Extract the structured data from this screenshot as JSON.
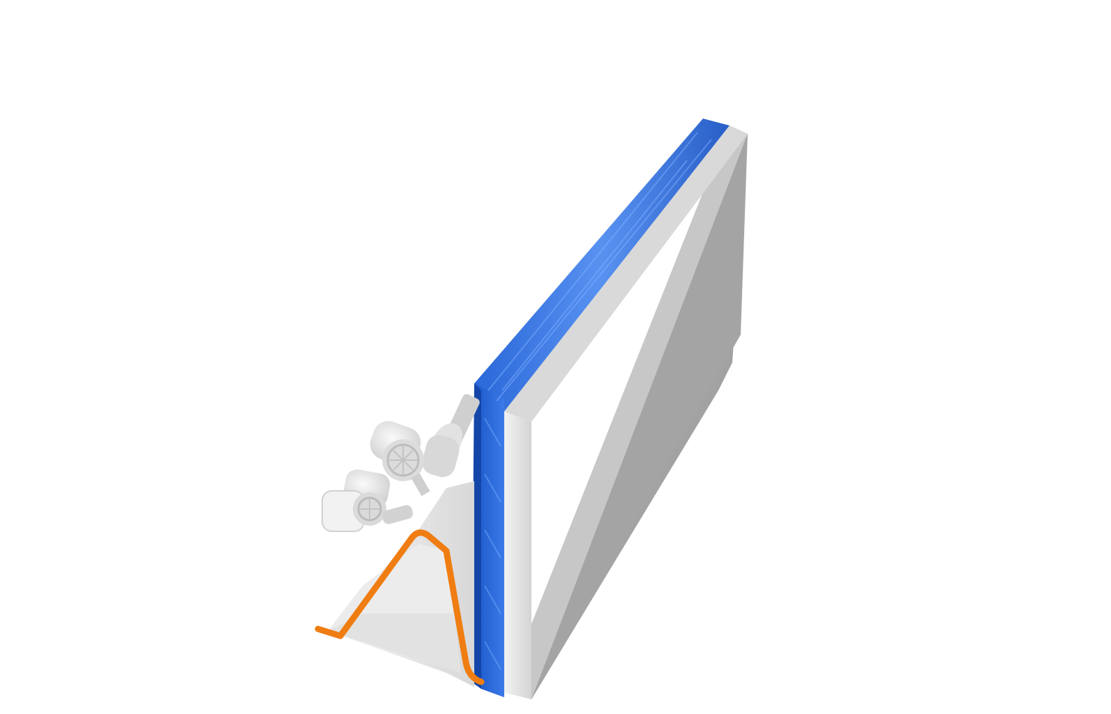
{
  "scene": {
    "background_color": "#ffffff",
    "components": [
      {
        "id": "gray-panel",
        "color": "#a6a6a6"
      },
      {
        "id": "blue-seal-strip",
        "color": "#2f6fe0"
      },
      {
        "id": "white-housing",
        "color": "#eeeeee"
      },
      {
        "id": "orange-edge-profile",
        "color": "#ef7d12"
      },
      {
        "id": "spotlight-upper",
        "color": "#e8e8e8"
      },
      {
        "id": "spotlight-lower",
        "color": "#e8e8e8"
      },
      {
        "id": "cylinder-mount",
        "color": "#d6d6d6"
      }
    ]
  }
}
